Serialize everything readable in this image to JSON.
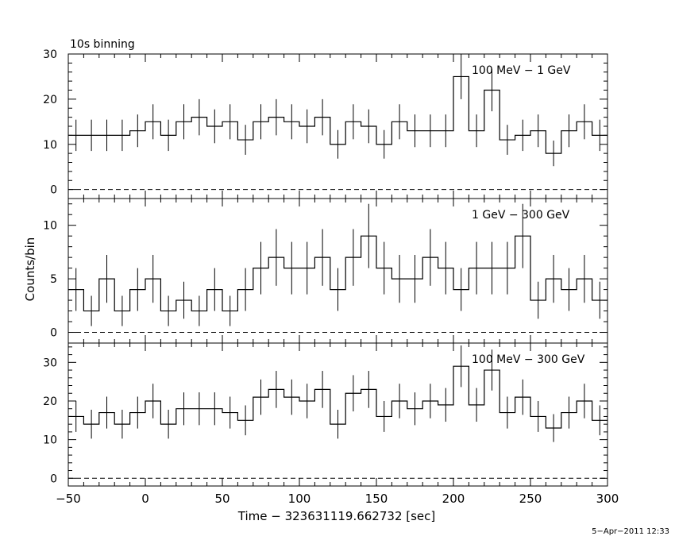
{
  "chart_data": {
    "type": "step",
    "title": "10s binning",
    "xlabel": "Time − 323631119.662732 [sec]",
    "ylabel": "Counts/bin",
    "timestamp": "5−Apr−2011 12:33",
    "xlim": [
      -50,
      300
    ],
    "xticks": [
      "−50",
      "0",
      "50",
      "100",
      "150",
      "200",
      "250",
      "300"
    ],
    "panels": [
      {
        "label": "100 MeV − 1 GeV",
        "ylim": [
          -2,
          30
        ],
        "yticks": [
          "0",
          "10",
          "20",
          "30"
        ],
        "x_start": -50,
        "bin_width": 10,
        "values": [
          12,
          12,
          12,
          12,
          13,
          15,
          12,
          15,
          16,
          14,
          15,
          11,
          15,
          16,
          15,
          14,
          16,
          10,
          15,
          14,
          10,
          15,
          13,
          13,
          13,
          25,
          13,
          22,
          11,
          12,
          13,
          8,
          13,
          15,
          12
        ]
      },
      {
        "label": "1 GeV − 300 GeV",
        "ylim": [
          -1,
          12.5
        ],
        "yticks": [
          "0",
          "5",
          "10"
        ],
        "x_start": -50,
        "bin_width": 10,
        "values": [
          4,
          2,
          5,
          2,
          4,
          5,
          2,
          3,
          2,
          4,
          2,
          4,
          6,
          7,
          6,
          6,
          7,
          4,
          7,
          9,
          6,
          5,
          5,
          7,
          6,
          4,
          6,
          6,
          6,
          9,
          3,
          5,
          4,
          5,
          3
        ]
      },
      {
        "label": "100 MeV − 300 GeV",
        "ylim": [
          -2,
          35
        ],
        "yticks": [
          "0",
          "10",
          "20",
          "30"
        ],
        "x_start": -50,
        "bin_width": 10,
        "values": [
          16,
          14,
          17,
          14,
          17,
          20,
          14,
          18,
          18,
          18,
          17,
          15,
          21,
          23,
          21,
          20,
          23,
          14,
          22,
          23,
          16,
          20,
          18,
          20,
          19,
          29,
          19,
          28,
          17,
          21,
          16,
          13,
          17,
          20,
          15
        ]
      }
    ],
    "grid": false,
    "zero_line": "dashed"
  }
}
